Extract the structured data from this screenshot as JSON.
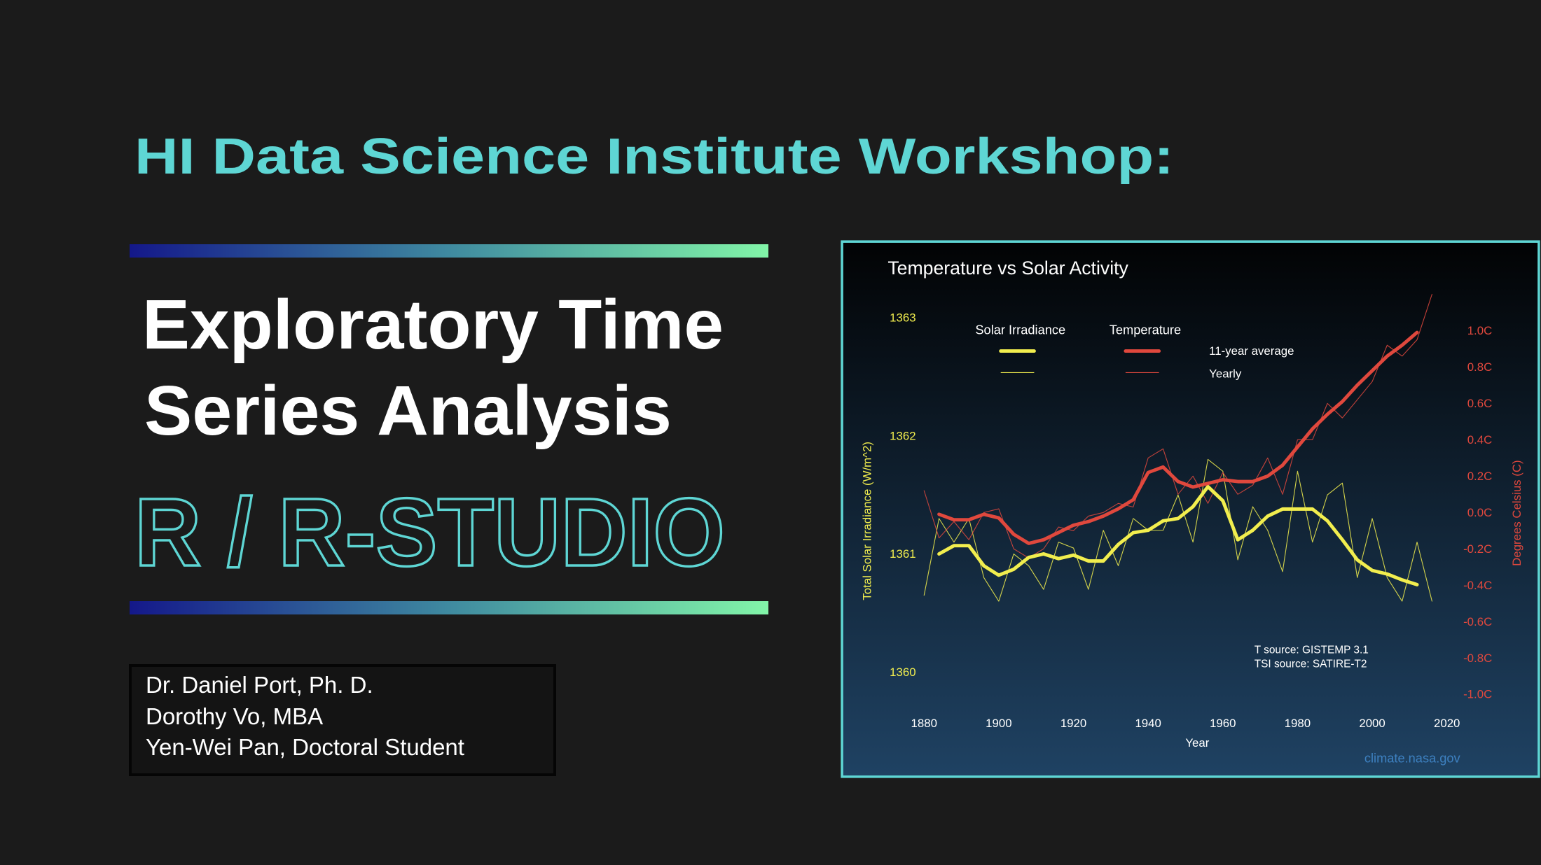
{
  "header": {
    "title": "HI Data Science Institute Workshop:",
    "subtitle_lines": [
      "Exploratory Time",
      "Series Analysis"
    ],
    "tool": "R / R-STUDIO"
  },
  "authors": [
    "Dr. Daniel Port, Ph. D.",
    "Dorothy Vo, MBA",
    "Yen-Wei Pan, Doctoral Student"
  ],
  "chart_data": {
    "type": "line",
    "title": "Temperature vs Solar Activity",
    "x_label": "Year",
    "y_label": "Total Solar Irradiance (W/m^2)",
    "y2_label": "Degrees Celsius (C)",
    "x": [
      1880,
      1884,
      1888,
      1892,
      1896,
      1900,
      1904,
      1908,
      1912,
      1916,
      1920,
      1924,
      1928,
      1932,
      1936,
      1940,
      1944,
      1948,
      1952,
      1956,
      1960,
      1964,
      1968,
      1972,
      1976,
      1980,
      1984,
      1988,
      1992,
      1996,
      2000,
      2004,
      2008,
      2012,
      2016
    ],
    "xlim": [
      1876,
      2024
    ],
    "xticks": [
      1880,
      1900,
      1920,
      1940,
      1960,
      1980,
      2000,
      2020
    ],
    "ylim": [
      1359.75,
      1363.075
    ],
    "yticks": [
      1360,
      1361,
      1362,
      1363
    ],
    "y2lim": [
      -1.04,
      1.12
    ],
    "y2ticks": [
      {
        "value": 1.0,
        "label": "1.0C"
      },
      {
        "value": 0.8,
        "label": "0.8C"
      },
      {
        "value": 0.6,
        "label": "0.6C"
      },
      {
        "value": 0.4,
        "label": "0.4C"
      },
      {
        "value": 0.2,
        "label": "0.2C"
      },
      {
        "value": 0.0,
        "label": "0.0C"
      },
      {
        "value": -0.2,
        "label": "-0.2C"
      },
      {
        "value": -0.4,
        "label": "-0.4C"
      },
      {
        "value": -0.6,
        "label": "-0.6C"
      },
      {
        "value": -0.8,
        "label": "-0.8C"
      },
      {
        "value": -1.0,
        "label": "-1.0C"
      }
    ],
    "legend_rows": [
      "11-year average",
      "Yearly"
    ],
    "series": [
      {
        "name": "Solar Irradiance",
        "color": "#f2ee4e",
        "axis": "y",
        "values": [
          null,
          1361.0,
          1361.07,
          1361.07,
          1360.9,
          1360.82,
          1360.87,
          1360.97,
          1361.0,
          1360.96,
          1360.99,
          1360.94,
          1360.94,
          1361.08,
          1361.18,
          1361.2,
          1361.28,
          1361.3,
          1361.4,
          1361.57,
          1361.45,
          1361.12,
          1361.2,
          1361.32,
          1361.38,
          1361.38,
          1361.38,
          1361.28,
          1361.12,
          1360.95,
          1360.86,
          1360.83,
          1360.78,
          1360.74,
          null
        ],
        "yearly_values": [
          1360.65,
          1361.3,
          1361.1,
          1361.3,
          1360.8,
          1360.6,
          1361.0,
          1360.9,
          1360.7,
          1361.1,
          1361.05,
          1360.7,
          1361.2,
          1360.9,
          1361.3,
          1361.2,
          1361.2,
          1361.5,
          1361.1,
          1361.8,
          1361.7,
          1360.95,
          1361.4,
          1361.2,
          1360.85,
          1361.7,
          1361.1,
          1361.5,
          1361.6,
          1360.8,
          1361.3,
          1360.8,
          1360.6,
          1361.1,
          1360.6
        ]
      },
      {
        "name": "Temperature",
        "color": "#e0483d",
        "axis": "y2",
        "values": [
          null,
          -0.01,
          -0.04,
          -0.04,
          -0.01,
          -0.03,
          -0.12,
          -0.17,
          -0.15,
          -0.11,
          -0.07,
          -0.05,
          -0.02,
          0.02,
          0.07,
          0.22,
          0.25,
          0.17,
          0.14,
          0.16,
          0.18,
          0.17,
          0.17,
          0.2,
          0.26,
          0.36,
          0.46,
          0.54,
          0.61,
          0.7,
          0.78,
          0.86,
          0.92,
          0.99,
          null
        ],
        "yearly_values": [
          0.12,
          -0.14,
          -0.05,
          -0.15,
          0.0,
          0.02,
          -0.2,
          -0.25,
          -0.2,
          -0.08,
          -0.1,
          -0.02,
          0.0,
          0.05,
          0.03,
          0.3,
          0.35,
          0.1,
          0.2,
          0.05,
          0.22,
          0.1,
          0.15,
          0.3,
          0.1,
          0.4,
          0.4,
          0.6,
          0.52,
          0.62,
          0.72,
          0.92,
          0.86,
          0.95,
          1.2
        ]
      }
    ],
    "annotations": [
      "T source: GISTEMP 3.1",
      "TSI source: SATIRE-T2"
    ],
    "credit": "climate.nasa.gov"
  }
}
